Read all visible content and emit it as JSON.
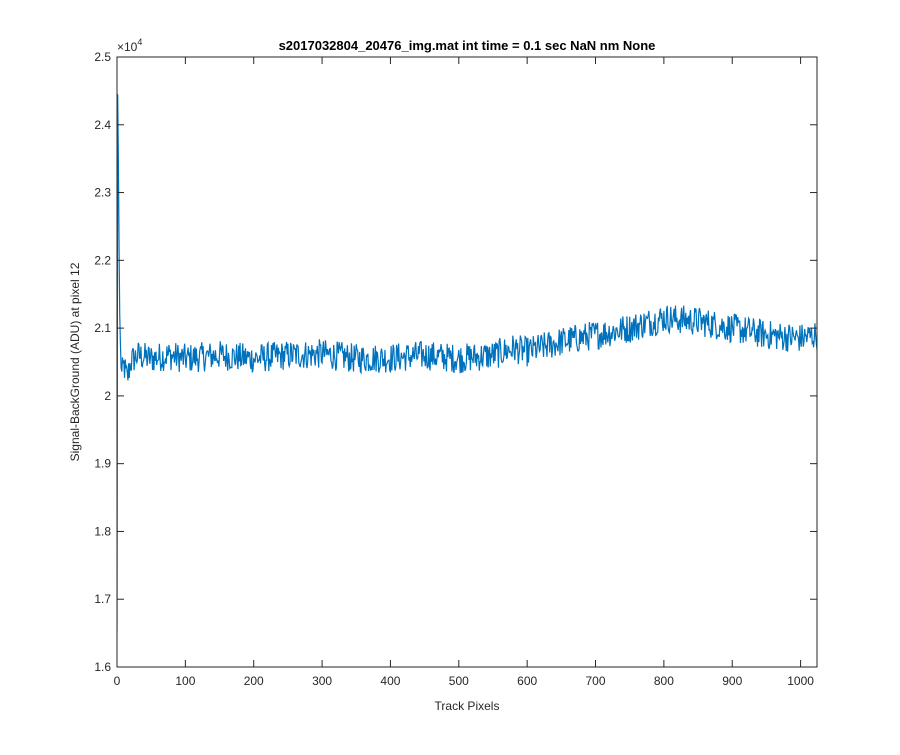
{
  "chart_data": {
    "type": "line",
    "title": "s2017032804_20476_img.mat int time = 0.1 sec  NaN nm None",
    "xlabel": "Track Pixels",
    "ylabel": "Signal-BackGround (ADU) at pixel 12",
    "xlim": [
      0,
      1024
    ],
    "ylim": [
      16000,
      25000
    ],
    "x_ticks": [
      0,
      100,
      200,
      300,
      400,
      500,
      600,
      700,
      800,
      900,
      1000
    ],
    "y_ticks": [
      16000,
      17000,
      18000,
      19000,
      20000,
      21000,
      22000,
      23000,
      24000,
      25000
    ],
    "y_tick_labels": [
      "1.6",
      "1.7",
      "1.8",
      "1.9",
      "2",
      "2.1",
      "2.2",
      "2.3",
      "2.4",
      "2.5"
    ],
    "y_exponent_base": "×10",
    "y_exponent_power": "4",
    "grid": false,
    "line_color": "#0072BD",
    "series": [
      {
        "points": [
          [
            0,
            16500
          ],
          [
            1,
            24450
          ],
          [
            2,
            23500
          ],
          [
            3,
            22200
          ],
          [
            4,
            21200
          ],
          [
            5,
            20700
          ],
          [
            7,
            20300
          ],
          [
            10,
            20450
          ],
          [
            15,
            20250
          ],
          [
            20,
            20500
          ],
          [
            30,
            20600
          ],
          [
            50,
            20550
          ],
          [
            75,
            20600
          ],
          [
            100,
            20550
          ],
          [
            150,
            20600
          ],
          [
            200,
            20550
          ],
          [
            250,
            20600
          ],
          [
            300,
            20620
          ],
          [
            350,
            20550
          ],
          [
            400,
            20560
          ],
          [
            450,
            20600
          ],
          [
            500,
            20550
          ],
          [
            550,
            20600
          ],
          [
            580,
            20700
          ],
          [
            600,
            20650
          ],
          [
            650,
            20800
          ],
          [
            700,
            20900
          ],
          [
            750,
            21000
          ],
          [
            800,
            21150
          ],
          [
            850,
            21100
          ],
          [
            900,
            21000
          ],
          [
            950,
            20900
          ],
          [
            1000,
            20850
          ],
          [
            1024,
            20900
          ]
        ],
        "noise_amplitude": 220,
        "sample_count": 1024
      }
    ]
  }
}
